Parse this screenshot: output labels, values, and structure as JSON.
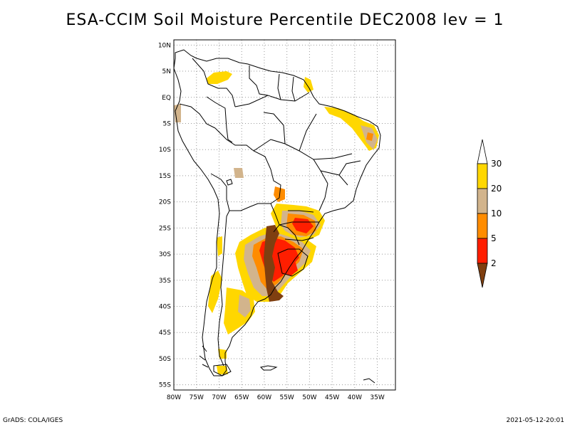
{
  "title": "ESA-CCIM Soil Moisture Percentile DEC2008 lev = 1",
  "footer_left": "GrADS: COLA/IGES",
  "footer_right": "2021-05-12-20:01",
  "map": {
    "lon_range": [
      -80,
      -31
    ],
    "lat_range": [
      -56,
      11
    ],
    "grid": true,
    "lat_ticks": [
      {
        "value": 10,
        "label": "10N"
      },
      {
        "value": 5,
        "label": "5N"
      },
      {
        "value": 0,
        "label": "EQ"
      },
      {
        "value": -5,
        "label": "5S"
      },
      {
        "value": -10,
        "label": "10S"
      },
      {
        "value": -15,
        "label": "15S"
      },
      {
        "value": -20,
        "label": "20S"
      },
      {
        "value": -25,
        "label": "25S"
      },
      {
        "value": -30,
        "label": "30S"
      },
      {
        "value": -35,
        "label": "35S"
      },
      {
        "value": -40,
        "label": "40S"
      },
      {
        "value": -45,
        "label": "45S"
      },
      {
        "value": -50,
        "label": "50S"
      },
      {
        "value": -55,
        "label": "55S"
      }
    ],
    "lon_ticks": [
      {
        "value": -80,
        "label": "80W"
      },
      {
        "value": -75,
        "label": "75W"
      },
      {
        "value": -70,
        "label": "70W"
      },
      {
        "value": -65,
        "label": "65W"
      },
      {
        "value": -60,
        "label": "60W"
      },
      {
        "value": -55,
        "label": "55W"
      },
      {
        "value": -50,
        "label": "50W"
      },
      {
        "value": -45,
        "label": "45W"
      },
      {
        "value": -40,
        "label": "40W"
      },
      {
        "value": -35,
        "label": "35W"
      }
    ]
  },
  "colorbar": {
    "position": "right",
    "bins": [
      {
        "label": "",
        "color": "#7f3f10"
      },
      {
        "label": "2",
        "color": "#ff1e00"
      },
      {
        "label": "5",
        "color": "#ff8c00"
      },
      {
        "label": "10",
        "color": "#d2b48c"
      },
      {
        "label": "20",
        "color": "#ffd700"
      },
      {
        "label": "30",
        "color": "#ffffff"
      }
    ]
  },
  "colors": {
    "below_2": "#7f3f10",
    "p2_5": "#ff1e00",
    "p5_10": "#ff8c00",
    "p10_20": "#d2b48c",
    "p20_30": "#ffd700",
    "above_30": "#ffffff"
  }
}
